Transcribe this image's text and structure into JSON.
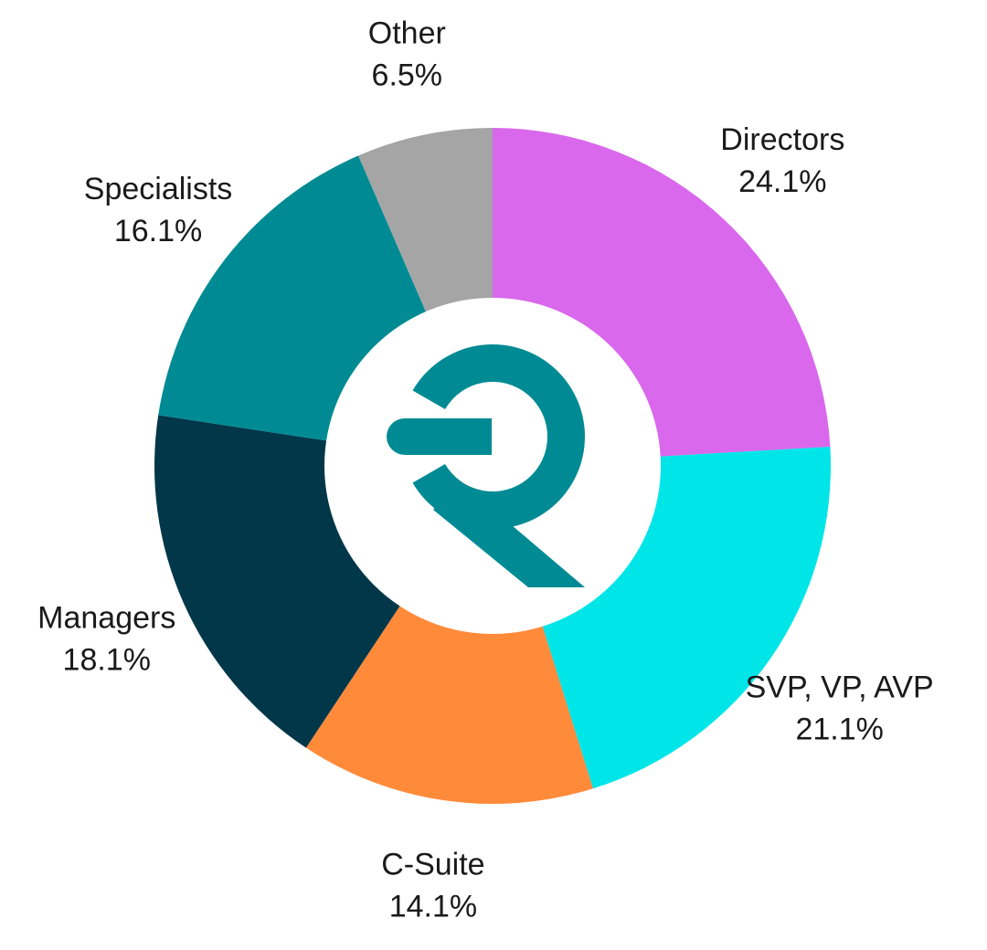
{
  "chart_data": {
    "type": "pie",
    "style": "donut",
    "start_angle": "12 o'clock",
    "direction": "clockwise",
    "slices": [
      {
        "label": "Directors",
        "value": 24.1,
        "value_label": "24.1%",
        "color": "#d968ec"
      },
      {
        "label": "SVP, VP, AVP",
        "value": 21.1,
        "value_label": "21.1%",
        "color": "#00e5e8"
      },
      {
        "label": "C-Suite",
        "value": 14.1,
        "value_label": "14.1%",
        "color": "#ff8a3a"
      },
      {
        "label": "Managers",
        "value": 18.1,
        "value_label": "18.1%",
        "color": "#02374a"
      },
      {
        "label": "Specialists",
        "value": 16.1,
        "value_label": "16.1%",
        "color": "#008b94"
      },
      {
        "label": "Other",
        "value": 6.5,
        "value_label": "6.5%",
        "color": "#a5a5a5"
      }
    ],
    "center_logo": {
      "icon": "brand-r-logo",
      "color": "#008b94"
    }
  }
}
